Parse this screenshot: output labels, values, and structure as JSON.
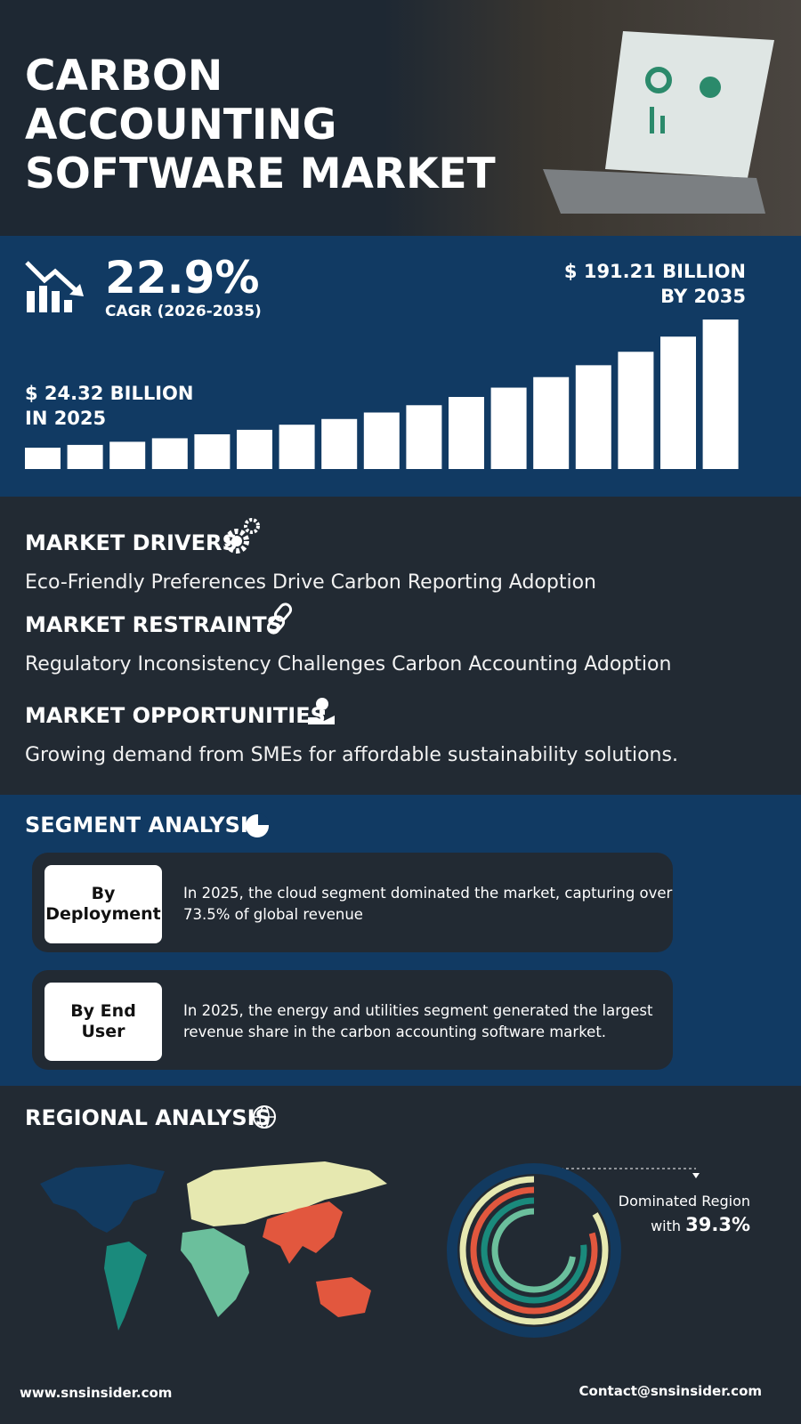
{
  "header": {
    "title_lines": [
      "CARBON",
      "ACCOUNTING",
      "SOFTWARE MARKET"
    ]
  },
  "stats": {
    "cagr": "22.9%",
    "cagr_label": "CAGR (2026-2035)",
    "end_value": "$ 191.21 BILLION",
    "end_year": "BY 2035",
    "start_value": "$ 24.32 BILLION",
    "start_year": "IN 2025"
  },
  "market": {
    "drivers": {
      "heading": "MARKET DRIVERS",
      "text": "Eco-Friendly Preferences Drive Carbon Reporting Adoption"
    },
    "restraints": {
      "heading": "MARKET RESTRAINTS",
      "text": "Regulatory Inconsistency Challenges Carbon Accounting Adoption"
    },
    "opportunities": {
      "heading": "MARKET OPPORTUNITIES",
      "text": "Growing demand from SMEs for affordable sustainability solutions."
    }
  },
  "segment": {
    "title": "SEGMENT ANALYSIS",
    "items": [
      {
        "label_lines": [
          "By",
          "Deployment"
        ],
        "text": "In 2025, the cloud segment dominated the market, capturing over 73.5% of global revenue"
      },
      {
        "label_lines": [
          "By End",
          "User"
        ],
        "text": "In 2025, the energy and utilities segment generated the largest revenue share in the carbon accounting software market."
      }
    ]
  },
  "regional": {
    "title": "REGIONAL ANALYSIS",
    "caption": "Dominated Region",
    "caption_prefix": "with",
    "share": "39.3%"
  },
  "footer": {
    "website": "www.snsinsider.com",
    "contact": "Contact@snsinsider.com"
  }
}
